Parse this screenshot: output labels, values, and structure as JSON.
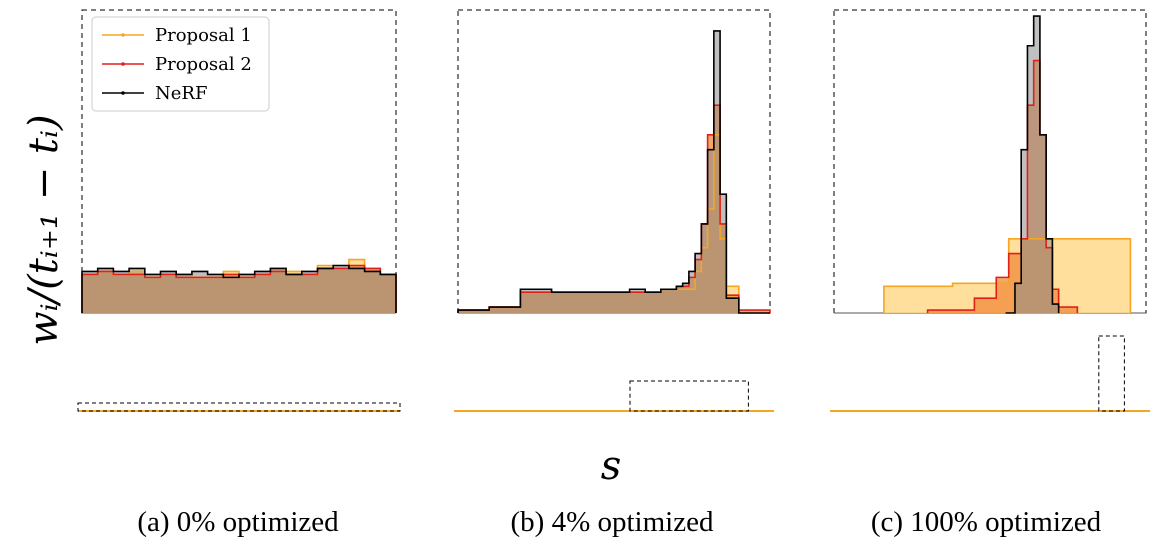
{
  "figure": {
    "ylabel": "w_i/(t_{i+1} − t_i)",
    "ylabel_display": "wᵢ/(tᵢ₊₁ − tᵢ)",
    "xlabel": "s"
  },
  "colors": {
    "proposal1": "#f5a623",
    "proposal1_fill": "#ffd98a",
    "proposal2": "#e0201b",
    "proposal2_fill": "#f08a3a",
    "nerf": "#000000",
    "nerf_fill": "#8c8c8c",
    "overlap_fill": "#d9722e"
  },
  "legend": {
    "placement": "upper-left of panel (a)",
    "entries": [
      {
        "label": "Proposal 1",
        "color": "#f5a623"
      },
      {
        "label": "Proposal 2",
        "color": "#e0201b"
      },
      {
        "label": "NeRF",
        "color": "#000000"
      }
    ]
  },
  "chart_data": [
    {
      "type": "area",
      "caption": "(a) 0% optimized",
      "description_of_content": "step histograms of weight density along the ray",
      "x_range": [
        0,
        1
      ],
      "nerf": {
        "x": [
          0.0,
          0.05,
          0.1,
          0.15,
          0.2,
          0.25,
          0.3,
          0.35,
          0.4,
          0.45,
          0.5,
          0.55,
          0.6,
          0.65,
          0.7,
          0.75,
          0.8,
          0.85,
          0.9,
          0.95,
          1.0
        ],
        "y": [
          0.14,
          0.15,
          0.14,
          0.15,
          0.13,
          0.14,
          0.13,
          0.14,
          0.13,
          0.12,
          0.13,
          0.14,
          0.15,
          0.13,
          0.14,
          0.15,
          0.16,
          0.15,
          0.14,
          0.13,
          0.13
        ]
      },
      "proposal1": {
        "x": [
          0.0,
          0.05,
          0.1,
          0.15,
          0.2,
          0.25,
          0.3,
          0.35,
          0.4,
          0.45,
          0.5,
          0.55,
          0.6,
          0.65,
          0.7,
          0.75,
          0.8,
          0.85,
          0.9,
          0.95,
          1.0
        ],
        "y": [
          0.13,
          0.14,
          0.13,
          0.14,
          0.12,
          0.13,
          0.13,
          0.12,
          0.12,
          0.14,
          0.12,
          0.13,
          0.15,
          0.14,
          0.13,
          0.16,
          0.15,
          0.18,
          0.15,
          0.13,
          0.12
        ]
      },
      "proposal2": {
        "x": [
          0.0,
          0.05,
          0.1,
          0.15,
          0.2,
          0.25,
          0.3,
          0.35,
          0.4,
          0.45,
          0.5,
          0.55,
          0.6,
          0.65,
          0.7,
          0.75,
          0.8,
          0.85,
          0.9,
          0.95,
          1.0
        ],
        "y": [
          0.13,
          0.14,
          0.13,
          0.13,
          0.12,
          0.13,
          0.12,
          0.12,
          0.12,
          0.13,
          0.12,
          0.13,
          0.14,
          0.13,
          0.13,
          0.15,
          0.15,
          0.16,
          0.15,
          0.13,
          0.12
        ]
      },
      "zoom_box": [
        0.0,
        1.0
      ]
    },
    {
      "type": "area",
      "caption": "(b) 4% optimized",
      "x_range": [
        0,
        1
      ],
      "nerf": {
        "x": [
          0.0,
          0.1,
          0.2,
          0.3,
          0.4,
          0.5,
          0.55,
          0.6,
          0.65,
          0.7,
          0.72,
          0.74,
          0.76,
          0.78,
          0.8,
          0.82,
          0.84,
          0.86,
          0.9,
          1.0
        ],
        "y": [
          0.01,
          0.02,
          0.08,
          0.07,
          0.07,
          0.07,
          0.08,
          0.07,
          0.08,
          0.09,
          0.1,
          0.14,
          0.2,
          0.3,
          0.55,
          0.95,
          0.4,
          0.05,
          0.0,
          0.0
        ]
      },
      "proposal1": {
        "x": [
          0.0,
          0.1,
          0.2,
          0.3,
          0.4,
          0.5,
          0.6,
          0.65,
          0.7,
          0.76,
          0.78,
          0.8,
          0.82,
          0.84,
          0.86,
          0.9,
          1.0
        ],
        "y": [
          0.01,
          0.02,
          0.07,
          0.07,
          0.07,
          0.07,
          0.07,
          0.08,
          0.08,
          0.14,
          0.22,
          0.35,
          0.6,
          0.25,
          0.09,
          0.0,
          0.0
        ]
      },
      "proposal2": {
        "x": [
          0.0,
          0.1,
          0.2,
          0.3,
          0.4,
          0.5,
          0.6,
          0.65,
          0.7,
          0.74,
          0.76,
          0.78,
          0.8,
          0.82,
          0.84,
          0.86,
          0.9,
          1.0
        ],
        "y": [
          0.01,
          0.02,
          0.07,
          0.07,
          0.07,
          0.07,
          0.07,
          0.08,
          0.09,
          0.12,
          0.18,
          0.3,
          0.6,
          0.7,
          0.3,
          0.06,
          0.01,
          0.0
        ]
      },
      "zoom_box": [
        0.55,
        0.92
      ]
    },
    {
      "type": "area",
      "caption": "(c) 100% optimized",
      "x_range": [
        0,
        1
      ],
      "nerf": {
        "x": [
          0.55,
          0.58,
          0.6,
          0.62,
          0.64,
          0.66,
          0.68,
          0.7,
          0.72
        ],
        "y": [
          0.0,
          0.1,
          0.55,
          0.9,
          1.0,
          0.6,
          0.25,
          0.03,
          0.0
        ]
      },
      "proposal1": {
        "x": [
          0.16,
          0.38,
          0.56,
          0.74,
          0.95
        ],
        "y": [
          0.09,
          0.1,
          0.25,
          0.25,
          0.0
        ]
      },
      "proposal2": {
        "x": [
          0.3,
          0.45,
          0.52,
          0.56,
          0.6,
          0.62,
          0.64,
          0.66,
          0.68,
          0.7,
          0.72,
          0.78
        ],
        "y": [
          0.01,
          0.05,
          0.12,
          0.2,
          0.25,
          0.7,
          0.85,
          0.6,
          0.22,
          0.08,
          0.02,
          0.0
        ]
      },
      "zoom_box": [
        0.84,
        0.92
      ]
    }
  ]
}
